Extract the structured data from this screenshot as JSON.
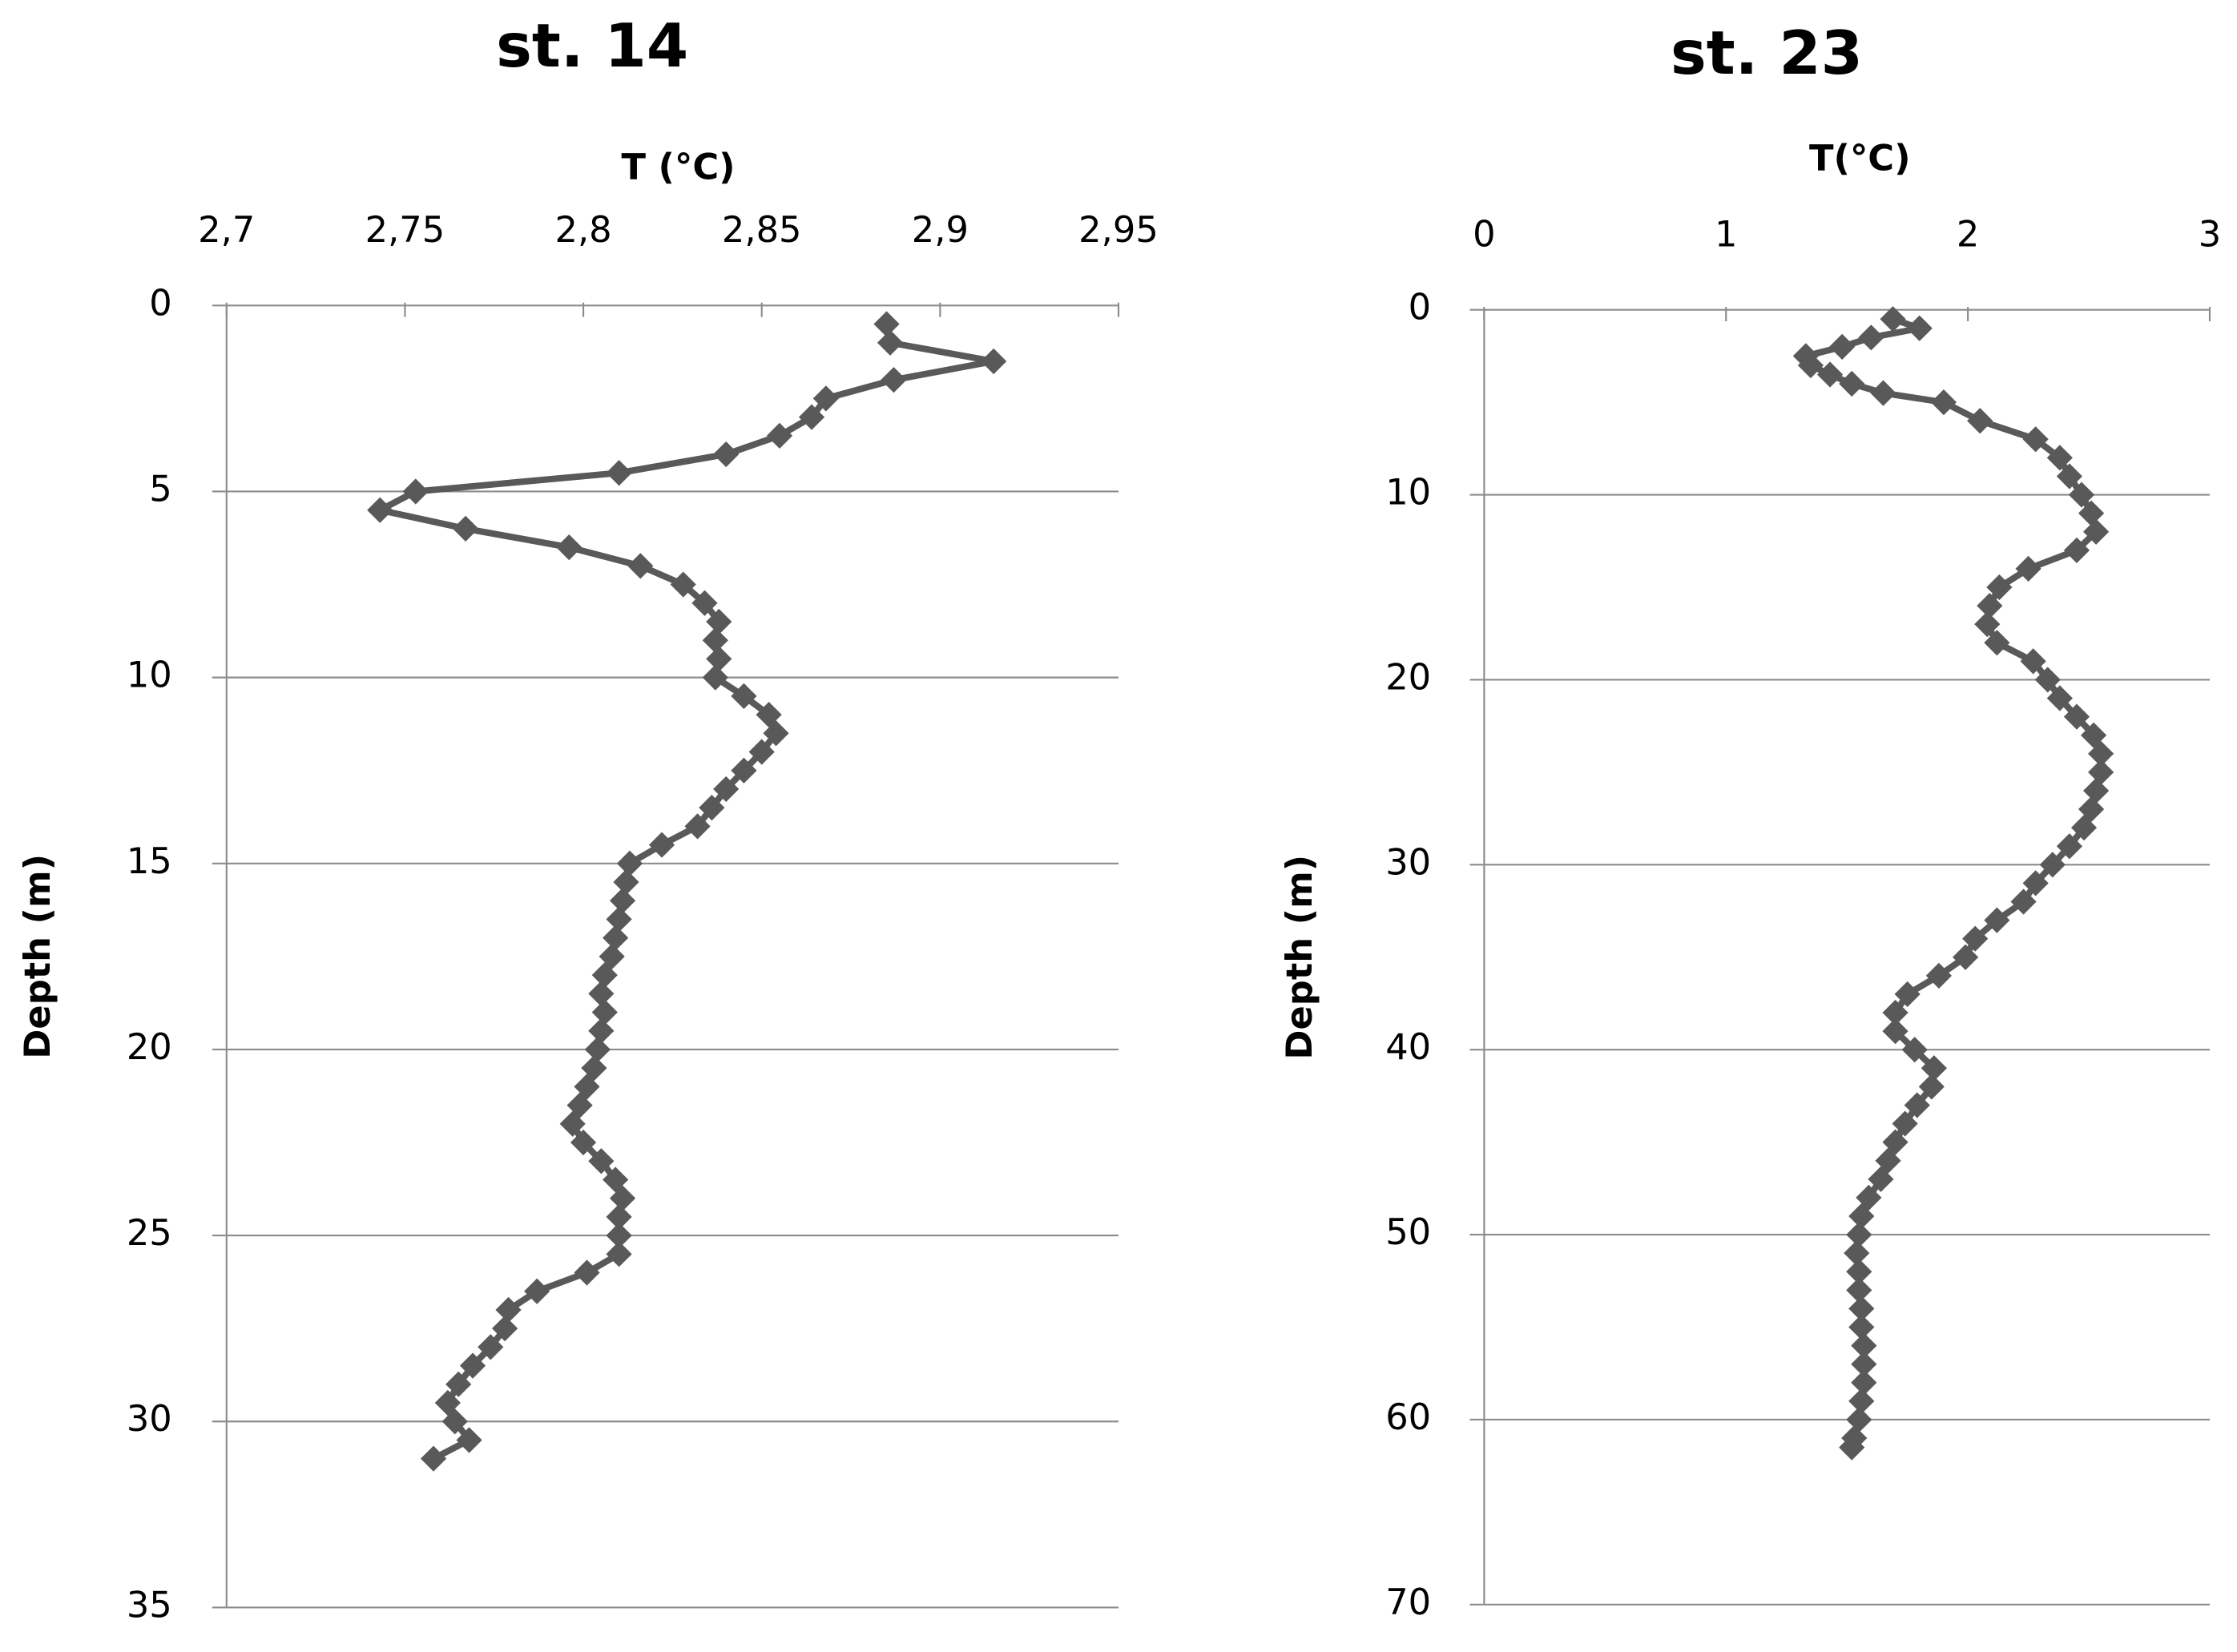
{
  "chart_data": [
    {
      "type": "line",
      "title": "st. 14",
      "x_label": "T (°C)",
      "y_label": "Depth (m)",
      "color": "#595959",
      "marker": "diamond",
      "grid": true,
      "y_inverted": true,
      "x_axis_position": "top",
      "xlim": [
        2.7,
        2.95
      ],
      "xticks": [
        {
          "value": 2.7,
          "label": "2,7"
        },
        {
          "value": 2.75,
          "label": "2,75"
        },
        {
          "value": 2.8,
          "label": "2,8"
        },
        {
          "value": 2.85,
          "label": "2,85"
        },
        {
          "value": 2.9,
          "label": "2,9"
        },
        {
          "value": 2.95,
          "label": "2,95"
        }
      ],
      "ylim": [
        0,
        35
      ],
      "yticks": [
        0,
        5,
        10,
        15,
        20,
        25,
        30,
        35
      ],
      "x": [
        2.885,
        2.886,
        2.915,
        2.887,
        2.868,
        2.864,
        2.855,
        2.84,
        2.81,
        2.753,
        2.743,
        2.767,
        2.796,
        2.816,
        2.828,
        2.834,
        2.838,
        2.837,
        2.838,
        2.837,
        2.845,
        2.852,
        2.854,
        2.85,
        2.845,
        2.84,
        2.836,
        2.832,
        2.822,
        2.813,
        2.812,
        2.811,
        2.81,
        2.809,
        2.808,
        2.806,
        2.805,
        2.806,
        2.805,
        2.804,
        2.803,
        2.801,
        2.799,
        2.797,
        2.8,
        2.805,
        2.809,
        2.811,
        2.81,
        2.81,
        2.81,
        2.801,
        2.787,
        2.779,
        2.778,
        2.774,
        2.769,
        2.765,
        2.762,
        2.764,
        2.768,
        2.758
      ],
      "values": [
        0.5,
        1,
        1.5,
        2,
        2.5,
        3,
        3.5,
        4,
        4.5,
        5,
        5.5,
        6,
        6.5,
        7,
        7.5,
        8,
        8.5,
        9,
        9.5,
        10,
        10.5,
        11,
        11.5,
        12,
        12.5,
        13,
        13.5,
        14,
        14.5,
        15,
        15.5,
        16,
        16.5,
        17,
        17.5,
        18,
        18.5,
        19,
        19.5,
        20,
        20.5,
        21,
        21.5,
        22,
        22.5,
        23,
        23.5,
        24,
        24.5,
        25,
        25.5,
        26,
        26.5,
        27,
        27.5,
        28,
        28.5,
        29,
        29.5,
        30,
        30.5,
        31
      ]
    },
    {
      "type": "line",
      "title": "st. 23",
      "x_label": "T(°C)",
      "y_label": "Depth (m)",
      "color": "#595959",
      "marker": "diamond",
      "grid": true,
      "y_inverted": true,
      "x_axis_position": "top",
      "xlim": [
        0,
        3
      ],
      "xticks": [
        0,
        1,
        2,
        3
      ],
      "ylim": [
        0,
        70
      ],
      "yticks": [
        0,
        10,
        20,
        30,
        40,
        50,
        60,
        70
      ],
      "x": [
        1.69,
        1.8,
        1.6,
        1.48,
        1.33,
        1.35,
        1.43,
        1.52,
        1.65,
        1.9,
        2.05,
        2.28,
        2.38,
        2.42,
        2.47,
        2.51,
        2.53,
        2.45,
        2.25,
        2.13,
        2.09,
        2.08,
        2.12,
        2.27,
        2.33,
        2.38,
        2.45,
        2.52,
        2.55,
        2.55,
        2.53,
        2.51,
        2.48,
        2.42,
        2.35,
        2.28,
        2.23,
        2.12,
        2.03,
        1.99,
        1.88,
        1.75,
        1.7,
        1.7,
        1.78,
        1.86,
        1.85,
        1.79,
        1.74,
        1.7,
        1.67,
        1.64,
        1.59,
        1.56,
        1.55,
        1.54,
        1.55,
        1.55,
        1.56,
        1.56,
        1.57,
        1.57,
        1.57,
        1.56,
        1.55,
        1.53,
        1.52
      ],
      "values": [
        0.5,
        1,
        1.5,
        2,
        2.5,
        3,
        3.5,
        4,
        4.5,
        5,
        6,
        7,
        8,
        9,
        10,
        11,
        12,
        13,
        14,
        15,
        16,
        17,
        18,
        19,
        20,
        21,
        22,
        23,
        24,
        25,
        26,
        27,
        28,
        29,
        30,
        31,
        32,
        33,
        34,
        35,
        36,
        37,
        38,
        39,
        40,
        41,
        42,
        43,
        44,
        45,
        46,
        47,
        48,
        49,
        50,
        51,
        52,
        53,
        54,
        55,
        56,
        57,
        58,
        59,
        60,
        61,
        61.5
      ]
    }
  ]
}
